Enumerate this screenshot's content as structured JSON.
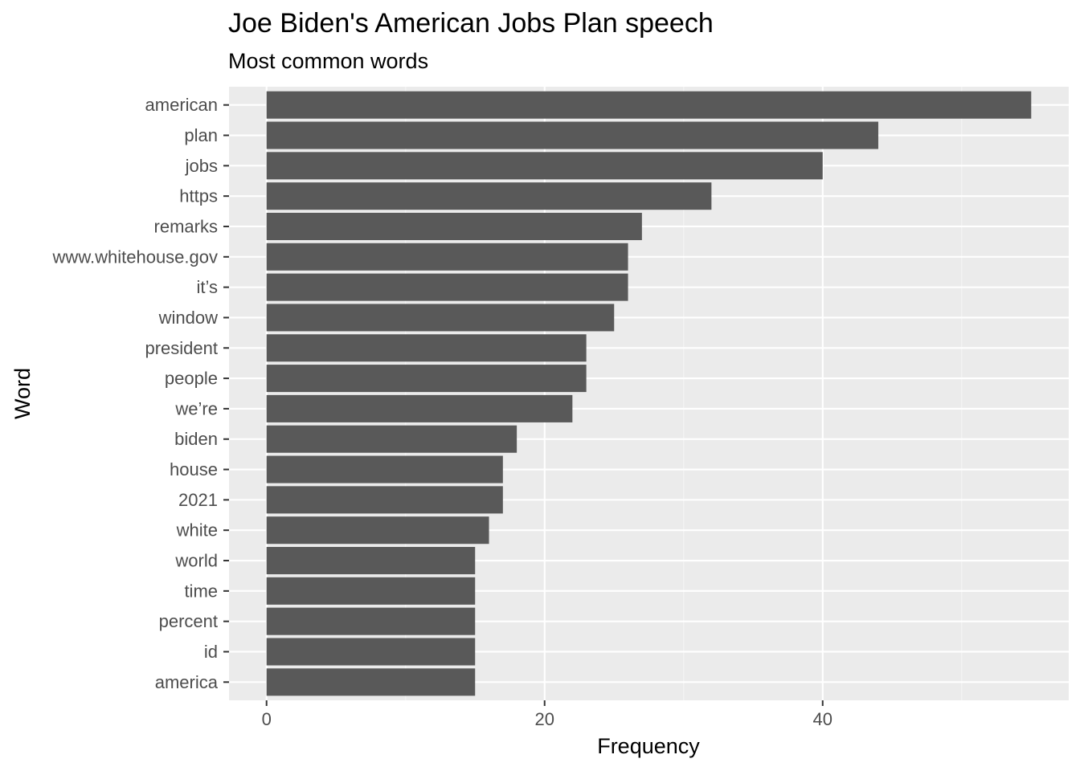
{
  "chart_data": {
    "type": "bar",
    "orientation": "horizontal",
    "title": "Joe Biden's American Jobs Plan speech",
    "subtitle": "Most common words",
    "xlabel": "Frequency",
    "ylabel": "Word",
    "xlim": [
      -2.7,
      57.7
    ],
    "x_ticks": [
      0,
      20,
      40
    ],
    "x_tick_labels": [
      "0",
      "20",
      "40"
    ],
    "grid": true,
    "legend": "none",
    "categories": [
      "american",
      "plan",
      "jobs",
      "https",
      "remarks",
      "www.whitehouse.gov",
      "it’s",
      "window",
      "president",
      "people",
      "we’re",
      "biden",
      "house",
      "2021",
      "white",
      "world",
      "time",
      "percent",
      "id",
      "america"
    ],
    "values": [
      55,
      44,
      40,
      32,
      27,
      26,
      26,
      25,
      23,
      23,
      22,
      18,
      17,
      17,
      16,
      15,
      15,
      15,
      15,
      15
    ]
  },
  "colors": {
    "bar": "#595959",
    "panel_background": "#ebebeb",
    "grid_major": "#ffffff",
    "grid_minor": "#f5f5f5",
    "tick": "#333333",
    "tick_label": "#4d4d4d",
    "text": "#000000"
  }
}
